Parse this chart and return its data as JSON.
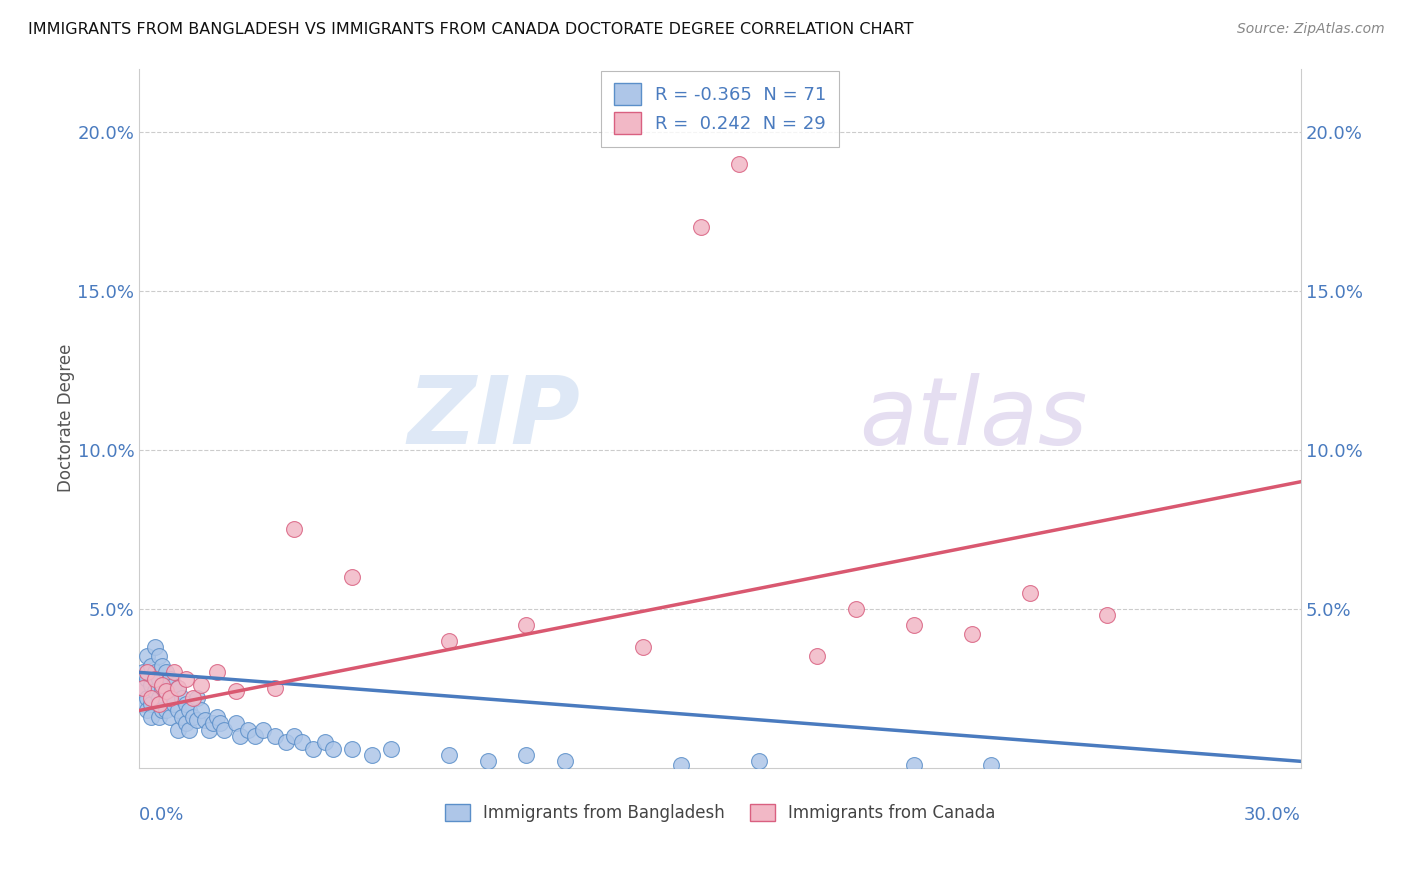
{
  "title": "IMMIGRANTS FROM BANGLADESH VS IMMIGRANTS FROM CANADA DOCTORATE DEGREE CORRELATION CHART",
  "source": "Source: ZipAtlas.com",
  "ylabel": "Doctorate Degree",
  "ytick_values": [
    0.0,
    0.05,
    0.1,
    0.15,
    0.2
  ],
  "ytick_labels": [
    "",
    "5.0%",
    "10.0%",
    "15.0%",
    "20.0%"
  ],
  "xlim": [
    0.0,
    0.3
  ],
  "ylim": [
    0.0,
    0.22
  ],
  "legend1_R": "-0.365",
  "legend1_N": "71",
  "legend2_R": "0.242",
  "legend2_N": "29",
  "color_blue_fill": "#aec6e8",
  "color_blue_edge": "#5b8fc9",
  "color_pink_fill": "#f2b8c6",
  "color_pink_edge": "#d96080",
  "color_blue_line": "#4a7bbf",
  "color_pink_line": "#d95870",
  "color_axis_text": "#4a7bbf",
  "color_grid": "#cccccc",
  "watermark_color": "#d5e5f5",
  "watermark_color2": "#d0c8e0",
  "bang_line_x0": 0.0,
  "bang_line_y0": 0.03,
  "bang_line_x1": 0.3,
  "bang_line_y1": 0.002,
  "can_line_x0": 0.0,
  "can_line_y0": 0.018,
  "can_line_x1": 0.3,
  "can_line_y1": 0.09,
  "bangladesh_x": [
    0.001,
    0.001,
    0.001,
    0.002,
    0.002,
    0.002,
    0.002,
    0.003,
    0.003,
    0.003,
    0.003,
    0.004,
    0.004,
    0.004,
    0.005,
    0.005,
    0.005,
    0.005,
    0.006,
    0.006,
    0.006,
    0.007,
    0.007,
    0.007,
    0.008,
    0.008,
    0.008,
    0.009,
    0.009,
    0.01,
    0.01,
    0.01,
    0.011,
    0.011,
    0.012,
    0.012,
    0.013,
    0.013,
    0.014,
    0.015,
    0.015,
    0.016,
    0.017,
    0.018,
    0.019,
    0.02,
    0.021,
    0.022,
    0.025,
    0.026,
    0.028,
    0.03,
    0.032,
    0.035,
    0.038,
    0.04,
    0.042,
    0.045,
    0.048,
    0.05,
    0.055,
    0.06,
    0.065,
    0.08,
    0.09,
    0.1,
    0.11,
    0.14,
    0.16,
    0.2,
    0.22
  ],
  "bangladesh_y": [
    0.03,
    0.025,
    0.02,
    0.035,
    0.028,
    0.022,
    0.018,
    0.032,
    0.026,
    0.02,
    0.016,
    0.038,
    0.03,
    0.024,
    0.035,
    0.028,
    0.022,
    0.016,
    0.032,
    0.025,
    0.018,
    0.03,
    0.024,
    0.018,
    0.028,
    0.022,
    0.016,
    0.026,
    0.02,
    0.025,
    0.018,
    0.012,
    0.022,
    0.016,
    0.02,
    0.014,
    0.018,
    0.012,
    0.016,
    0.022,
    0.015,
    0.018,
    0.015,
    0.012,
    0.014,
    0.016,
    0.014,
    0.012,
    0.014,
    0.01,
    0.012,
    0.01,
    0.012,
    0.01,
    0.008,
    0.01,
    0.008,
    0.006,
    0.008,
    0.006,
    0.006,
    0.004,
    0.006,
    0.004,
    0.002,
    0.004,
    0.002,
    0.001,
    0.002,
    0.001,
    0.001
  ],
  "canada_x": [
    0.001,
    0.002,
    0.003,
    0.004,
    0.005,
    0.006,
    0.007,
    0.008,
    0.009,
    0.01,
    0.012,
    0.014,
    0.016,
    0.02,
    0.025,
    0.035,
    0.04,
    0.055,
    0.08,
    0.1,
    0.13,
    0.145,
    0.155,
    0.175,
    0.185,
    0.2,
    0.215,
    0.23,
    0.25
  ],
  "canada_y": [
    0.025,
    0.03,
    0.022,
    0.028,
    0.02,
    0.026,
    0.024,
    0.022,
    0.03,
    0.025,
    0.028,
    0.022,
    0.026,
    0.03,
    0.024,
    0.025,
    0.075,
    0.06,
    0.04,
    0.045,
    0.038,
    0.17,
    0.19,
    0.035,
    0.05,
    0.045,
    0.042,
    0.055,
    0.048
  ]
}
